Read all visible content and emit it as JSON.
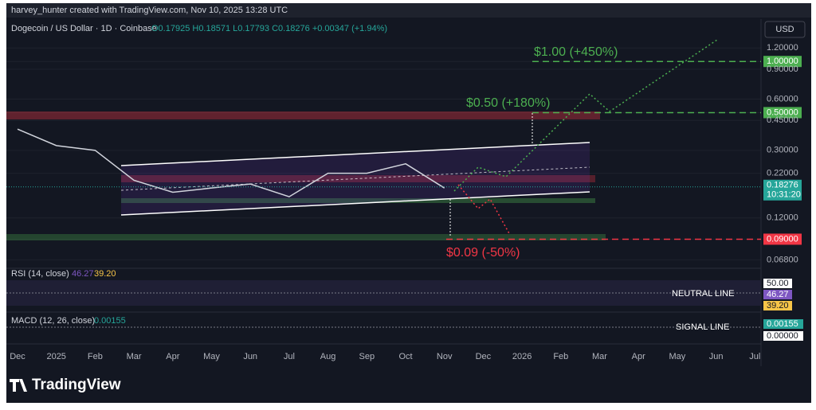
{
  "header": {
    "credit": "harvey_hunter created with TradingView.com, Nov 10, 2025 13:28 UTC",
    "symbol": "Dogecoin / US Dollar · 1D · Coinbase",
    "ohlc": "O0.17925 H0.18571 L0.17793 C0.18276 +0.00347 (+1.94%)",
    "currency": "USD"
  },
  "chart_data": {
    "type": "line",
    "log_scale": true,
    "categories": [
      "Dec",
      "2025",
      "Feb",
      "Mar",
      "Apr",
      "May",
      "Jun",
      "Jul",
      "Aug",
      "Sep",
      "Oct",
      "Nov",
      "Dec",
      "2026",
      "Feb",
      "Mar",
      "Apr",
      "May",
      "Jun",
      "Jul"
    ],
    "series": [
      {
        "name": "DOGEUSD",
        "color": "#d1d4dc",
        "values": [
          0.4,
          0.32,
          0.3,
          0.2,
          0.17,
          0.18,
          0.19,
          0.16,
          0.22,
          0.22,
          0.25,
          0.18,
          null,
          null,
          null,
          null,
          null,
          null,
          null,
          null
        ]
      }
    ],
    "ylim": [
      0.062,
      1.7
    ],
    "yticks": [
      {
        "value": 1.2,
        "label": "1.20000"
      },
      {
        "value": 1.0,
        "label": "1.00000"
      },
      {
        "value": 0.9,
        "label": "0.90000"
      },
      {
        "value": 0.6,
        "label": "0.60000"
      },
      {
        "value": 0.5,
        "label": "0.50000"
      },
      {
        "value": 0.45,
        "label": "0.45000"
      },
      {
        "value": 0.3,
        "label": "0.30000"
      },
      {
        "value": 0.22,
        "label": "0.22000"
      },
      {
        "value": 0.12,
        "label": "0.12000"
      },
      {
        "value": 0.09,
        "label": "0.09000"
      },
      {
        "value": 0.068,
        "label": "0.06800"
      }
    ],
    "last_price": 0.18276,
    "countdown": "10:31:20",
    "annotations": [
      {
        "text": "$1.00 (+450%)",
        "value": 1.0,
        "color": "#4caf50"
      },
      {
        "text": "$0.50 (+180%)",
        "value": 0.5,
        "color": "#4caf50"
      },
      {
        "text": "$0.09 (-50%)",
        "value": 0.09,
        "color": "#f23645"
      }
    ]
  },
  "rsi": {
    "title": "RSI (14, close)",
    "value": "46.27",
    "ma": "39.20",
    "level": "50.00",
    "note": "NEUTRAL LINE"
  },
  "macd": {
    "title": "MACD (12, 26, close)",
    "value": "0.00155",
    "zero": "0.00000",
    "note": "SIGNAL LINE"
  },
  "footer": {
    "brand": "TradingView"
  }
}
